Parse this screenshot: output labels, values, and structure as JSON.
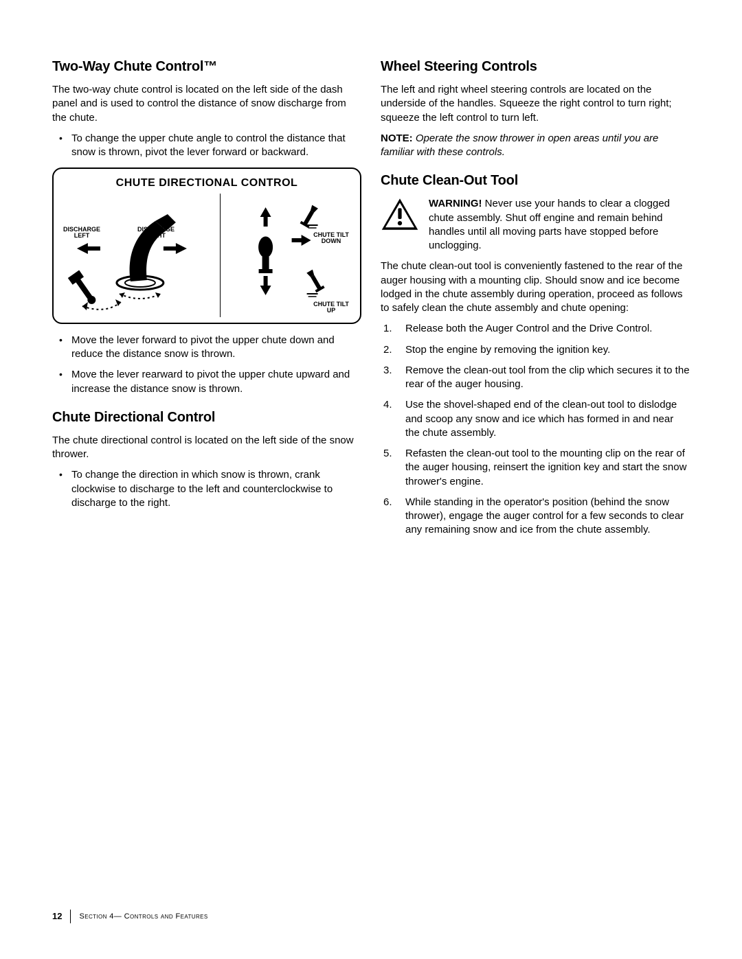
{
  "colors": {
    "text": "#000000",
    "background": "#ffffff",
    "border": "#000000"
  },
  "page": {
    "number": "12",
    "section_line": "Section 4— Controls and Features"
  },
  "left": {
    "h_twoway": "Two-Way Chute Control™",
    "p_twoway": "The two-way chute control is located on the left side of the dash panel and is used to control the distance of snow discharge from the chute.",
    "twoway_bullets": [
      "To change the upper chute angle to control the distance that snow is thrown, pivot the lever forward or backward."
    ],
    "diagram": {
      "title": "CHUTE DIRECTIONAL CONTROL",
      "labels": {
        "discharge_left": "DISCHARGE\nLEFT",
        "discharge_right": "DISCHARGE\nRIGHT",
        "tilt_down": "CHUTE TILT\nDOWN",
        "tilt_up": "CHUTE TILT\nUP"
      }
    },
    "after_diagram_bullets": [
      "Move the lever forward to pivot the upper chute down and reduce the distance snow is thrown.",
      "Move the lever rearward to pivot the upper chute upward and increase the distance snow is thrown."
    ],
    "h_directional": "Chute Directional Control",
    "p_directional": "The chute directional control is located on the left side of the snow thrower.",
    "directional_bullets": [
      "To change the direction in which snow is thrown, crank clockwise to discharge to the left and counterclockwise to discharge to the right."
    ]
  },
  "right": {
    "h_wheel": "Wheel Steering Controls",
    "p_wheel": "The left and right wheel steering controls are located on the underside of the handles. Squeeze the right control to turn right; squeeze the left control to turn left.",
    "note_label": "NOTE:",
    "note_text": "Operate the snow thrower in open areas until you are familiar with these controls.",
    "h_cleanout": "Chute Clean-Out Tool",
    "warn_label": "WARNING!",
    "warn_text": "Never use your hands to clear a clogged chute assembly. Shut off engine and remain behind handles until all moving parts have stopped before unclogging.",
    "p_cleanout": "The chute clean-out tool is conveniently fastened to the rear of the auger housing with a mounting clip. Should snow and ice become lodged in the chute assembly during operation, proceed as follows to safely clean the chute assembly and chute opening:",
    "steps": [
      "Release both the Auger Control and the Drive Control.",
      "Stop the engine by removing the ignition key.",
      "Remove the clean-out tool from the clip which secures it to the rear of the auger housing.",
      "Use the shovel-shaped end of the clean-out tool to dislodge and scoop any snow and ice which has formed in and near the chute assembly.",
      "Refasten the clean-out tool to the mounting clip on the rear of the auger housing, reinsert the ignition key and start the snow thrower's engine.",
      "While standing in the operator's position (behind the snow thrower), engage the auger control for a few seconds to clear any remaining snow and ice from the chute assembly."
    ]
  }
}
